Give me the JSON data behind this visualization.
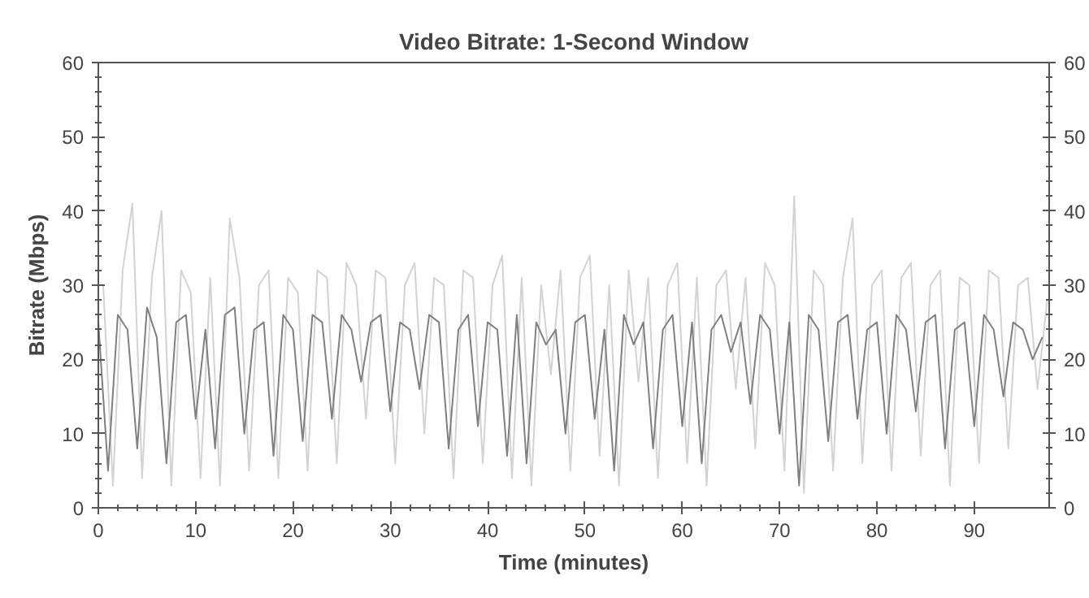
{
  "chart_data": {
    "type": "line",
    "title": "Video Bitrate: 1-Second Window",
    "xlabel": "Time (minutes)",
    "ylabel": "Bitrate (Mbps)",
    "xlim": [
      0,
      97.7
    ],
    "xticks": [
      0,
      10,
      20,
      30,
      40,
      50,
      60,
      70,
      80,
      90
    ],
    "ylim": [
      0,
      60
    ],
    "yticks": [
      0,
      10,
      20,
      30,
      40,
      50,
      60
    ],
    "y2lim": [
      0,
      60
    ],
    "y2ticks": [
      0,
      10,
      20,
      30,
      40,
      50,
      60
    ],
    "grid": false,
    "marker": "none",
    "line_style": "solid",
    "series": [
      {
        "color": "#d3d3d3",
        "x": [
          0.5,
          1.5,
          2.5,
          3.5,
          4.5,
          5.5,
          6.5,
          7.5,
          8.5,
          9.5,
          10.5,
          11.5,
          12.5,
          13.5,
          14.5,
          15.5,
          16.5,
          17.5,
          18.5,
          19.5,
          20.5,
          21.5,
          22.5,
          23.5,
          24.5,
          25.5,
          26.5,
          27.5,
          28.5,
          29.5,
          30.5,
          31.5,
          32.5,
          33.5,
          34.5,
          35.5,
          36.5,
          37.5,
          38.5,
          39.5,
          40.5,
          41.5,
          42.5,
          43.5,
          44.5,
          45.5,
          46.5,
          47.5,
          48.5,
          49.5,
          50.5,
          51.5,
          52.5,
          53.5,
          54.5,
          55.5,
          56.5,
          57.5,
          58.5,
          59.5,
          60.5,
          61.5,
          62.5,
          63.5,
          64.5,
          65.5,
          66.5,
          67.5,
          68.5,
          69.5,
          70.5,
          71.5,
          72.5,
          73.5,
          74.5,
          75.5,
          76.5,
          77.5,
          78.5,
          79.5,
          80.5,
          81.5,
          82.5,
          83.5,
          84.5,
          85.5,
          86.5,
          87.5,
          88.5,
          89.5,
          90.5,
          91.5,
          92.5,
          93.5,
          94.5,
          95.5,
          96.5,
          97.5
        ],
        "values": [
          30,
          3,
          32,
          41,
          4,
          31,
          40,
          3,
          32,
          29,
          4,
          31,
          3,
          39,
          31,
          5,
          30,
          32,
          4,
          31,
          29,
          5,
          32,
          31,
          6,
          33,
          30,
          12,
          32,
          31,
          6,
          30,
          33,
          10,
          31,
          30,
          4,
          32,
          31,
          6,
          30,
          34,
          4,
          31,
          3,
          30,
          18,
          32,
          5,
          31,
          34,
          7,
          30,
          3,
          32,
          17,
          31,
          4,
          30,
          33,
          6,
          31,
          3,
          30,
          32,
          16,
          31,
          8,
          33,
          30,
          5,
          42,
          2,
          32,
          30,
          5,
          31,
          39,
          6,
          30,
          32,
          5,
          31,
          33,
          7,
          30,
          32,
          3,
          31,
          30,
          6,
          32,
          31,
          8,
          30,
          31,
          16,
          28
        ]
      },
      {
        "color": "#808080",
        "x": [
          0,
          1,
          2,
          3,
          4,
          5,
          6,
          7,
          8,
          9,
          10,
          11,
          12,
          13,
          14,
          15,
          16,
          17,
          18,
          19,
          20,
          21,
          22,
          23,
          24,
          25,
          26,
          27,
          28,
          29,
          30,
          31,
          32,
          33,
          34,
          35,
          36,
          37,
          38,
          39,
          40,
          41,
          42,
          43,
          44,
          45,
          46,
          47,
          48,
          49,
          50,
          51,
          52,
          53,
          54,
          55,
          56,
          57,
          58,
          59,
          60,
          61,
          62,
          63,
          64,
          65,
          66,
          67,
          68,
          69,
          70,
          71,
          72,
          73,
          74,
          75,
          76,
          77,
          78,
          79,
          80,
          81,
          82,
          83,
          84,
          85,
          86,
          87,
          88,
          89,
          90,
          91,
          92,
          93,
          94,
          95,
          96,
          97
        ],
        "values": [
          25,
          5,
          26,
          24,
          8,
          27,
          23,
          6,
          25,
          26,
          12,
          24,
          8,
          26,
          27,
          10,
          24,
          25,
          7,
          26,
          24,
          9,
          26,
          25,
          12,
          26,
          24,
          17,
          25,
          26,
          13,
          25,
          24,
          16,
          26,
          25,
          8,
          24,
          26,
          11,
          25,
          24,
          7,
          26,
          6,
          25,
          22,
          24,
          10,
          25,
          26,
          12,
          24,
          5,
          26,
          22,
          25,
          8,
          24,
          26,
          11,
          25,
          6,
          24,
          26,
          21,
          25,
          14,
          26,
          24,
          10,
          25,
          3,
          26,
          24,
          9,
          25,
          26,
          12,
          24,
          25,
          10,
          26,
          24,
          13,
          25,
          26,
          8,
          24,
          25,
          11,
          26,
          24,
          15,
          25,
          24,
          20,
          23
        ]
      }
    ]
  }
}
